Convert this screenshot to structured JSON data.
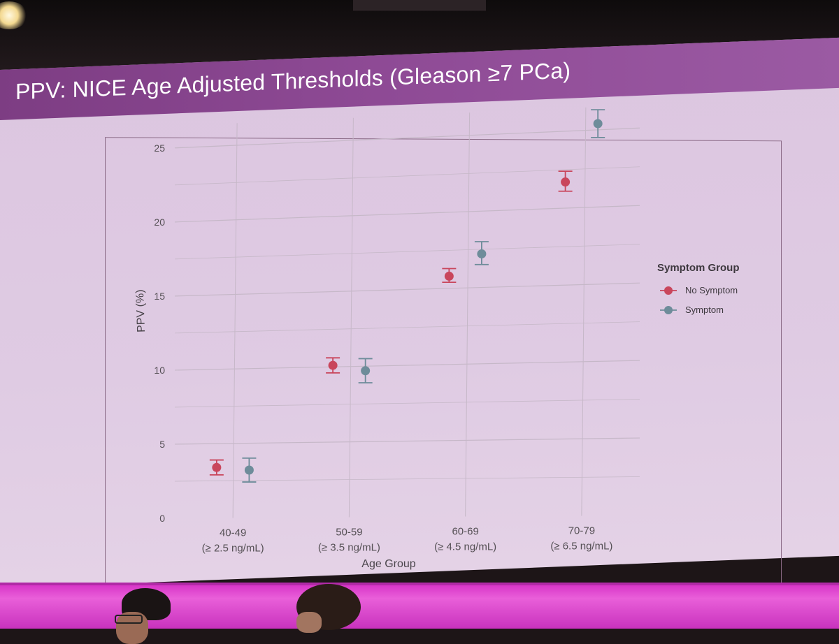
{
  "slide": {
    "title": "PPV: NICE Age Adjusted Thresholds (Gleason ≥7 PCa)"
  },
  "colors": {
    "no_symptom": "#c9465c",
    "symptom": "#6e8c9a",
    "grid": "#c6b8c8",
    "title_band": "#8e4a95"
  },
  "chart_data": {
    "type": "scatter",
    "title": "",
    "xlabel": "Age Group",
    "ylabel": "PPV (%)",
    "categories": [
      {
        "age": "40-49",
        "threshold": "(≥ 2.5 ng/mL)"
      },
      {
        "age": "50-59",
        "threshold": "(≥ 3.5 ng/mL)"
      },
      {
        "age": "60-69",
        "threshold": "(≥ 4.5 ng/mL)"
      },
      {
        "age": "70-79",
        "threshold": "(≥ 6.5 ng/mL)"
      }
    ],
    "ylim": [
      0,
      26
    ],
    "yticks": [
      0,
      5,
      10,
      15,
      20,
      25
    ],
    "grid": true,
    "error_bars": true,
    "legend": {
      "title": "Symptom Group",
      "position": "right"
    },
    "series": [
      {
        "name": "No Symptom",
        "color": "#c9465c",
        "values": [
          3.4,
          10.1,
          15.8,
          21.7
        ],
        "lower": [
          2.9,
          9.6,
          15.4,
          21.1
        ],
        "upper": [
          3.9,
          10.6,
          16.3,
          22.4
        ]
      },
      {
        "name": "Symptom",
        "color": "#6e8c9a",
        "values": [
          3.2,
          9.7,
          17.2,
          25.4
        ],
        "lower": [
          2.4,
          8.9,
          16.5,
          24.5
        ],
        "upper": [
          4.0,
          10.5,
          18.0,
          26.3
        ]
      }
    ]
  }
}
